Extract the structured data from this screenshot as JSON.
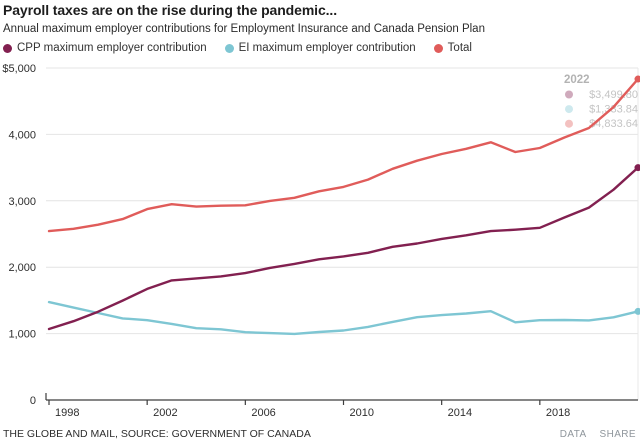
{
  "header": {
    "title": "Payroll taxes are on the rise during the pandemic...",
    "subtitle": "Annual maximum employer contributions for Employment Insurance and Canada Pension Plan"
  },
  "footer": {
    "source": "THE GLOBE AND MAIL, SOURCE: GOVERNMENT OF CANADA",
    "data_label": "DATA",
    "share_label": "SHARE"
  },
  "chart_data": {
    "type": "line",
    "title": "Payroll taxes are on the rise during the pandemic...",
    "subtitle": "Annual maximum employer contributions for Employment Insurance and Canada Pension Plan",
    "grid": "horizontal",
    "legend_position": "top",
    "ylim": [
      0,
      5000
    ],
    "x": [
      1998,
      1999,
      2000,
      2001,
      2002,
      2003,
      2004,
      2005,
      2006,
      2007,
      2008,
      2009,
      2010,
      2011,
      2012,
      2013,
      2014,
      2015,
      2016,
      2017,
      2018,
      2019,
      2020,
      2021,
      2022
    ],
    "series": [
      {
        "name": "CPP maximum employer contribution",
        "color": "#822050",
        "values": [
          1068.8,
          1186.5,
          1329.9,
          1496.4,
          1673.2,
          1801.8,
          1831.5,
          1861.2,
          1910.7,
          1989.9,
          2049.3,
          2118.6,
          2163.15,
          2217.6,
          2306.7,
          2356.2,
          2425.5,
          2479.95,
          2544.3,
          2564.1,
          2593.8,
          2748.9,
          2898.0,
          3166.45,
          3499.8
        ]
      },
      {
        "name": "EI maximum employer contribution",
        "color": "#7ec6d3",
        "values": [
          1474.2,
          1392.3,
          1310.4,
          1228.5,
          1201.2,
          1146.6,
          1081.08,
          1064.7,
          1021.02,
          1008.0,
          995.44,
          1024.51,
          1046.3,
          1101.46,
          1175.96,
          1247.57,
          1279.15,
          1302.84,
          1337.06,
          1170.67,
          1201.51,
          1204.31,
          1198.9,
          1245.36,
          1333.84
        ]
      },
      {
        "name": "Total",
        "color": "#e05c5a",
        "values": [
          2543.0,
          2578.8,
          2640.3,
          2724.9,
          2874.4,
          2948.4,
          2912.58,
          2925.9,
          2931.72,
          2997.9,
          3044.74,
          3143.11,
          3209.45,
          3319.06,
          3482.66,
          3603.77,
          3704.65,
          3782.79,
          3881.36,
          3734.77,
          3795.31,
          3953.21,
          4096.9,
          4411.81,
          4833.64
        ]
      }
    ],
    "ytick_values": [
      0,
      1000,
      2000,
      3000,
      4000,
      5000
    ],
    "ytick_labels": [
      "0",
      "1,000",
      "2,000",
      "3,000",
      "4,000",
      "$5,000"
    ],
    "xtick_values": [
      1998,
      2002,
      2006,
      2010,
      2014,
      2018
    ],
    "xtick_labels": [
      "1998",
      "2002",
      "2006",
      "2010",
      "2014",
      "2018"
    ],
    "annotation": {
      "title": "2022",
      "rows": [
        {
          "value": "$3,499.80"
        },
        {
          "value": "$1,333.84"
        },
        {
          "value": "$4,833.64"
        }
      ]
    }
  }
}
